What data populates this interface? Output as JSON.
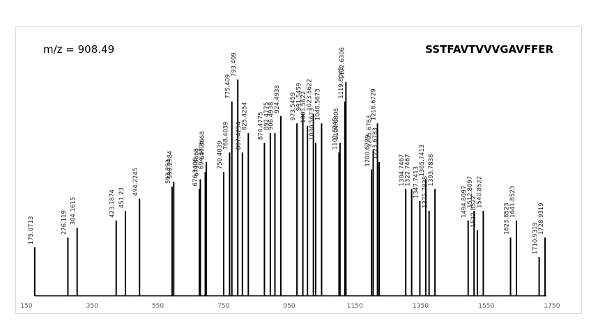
{
  "header": {
    "mz_label": "m/z = 908.49",
    "sequence": "SSTFAVTVVVGAVFFER"
  },
  "colors": {
    "peak": "#000000",
    "axis": "#000000",
    "leader": "#888888",
    "border": "#d9d9d9"
  },
  "chart_data": {
    "type": "bar",
    "title": "",
    "xlabel": "",
    "ylabel": "",
    "xlim": [
      150,
      1750
    ],
    "ylim": [
      0,
      100
    ],
    "xticks": [
      150,
      350,
      550,
      750,
      950,
      1150,
      1350,
      1550,
      1750
    ],
    "grid": false,
    "peaks": [
      {
        "mz": 175.0713,
        "label": "175.0713",
        "y": 20
      },
      {
        "mz": 276.119,
        "label": "276.119",
        "y": 24
      },
      {
        "mz": 304.1615,
        "label": "304.1615",
        "y": 28
      },
      {
        "mz": 423.1874,
        "label": "423.1874",
        "y": 31
      },
      {
        "mz": 451.23,
        "label": "451.23",
        "y": 35
      },
      {
        "mz": 494.2245,
        "label": "494.2245",
        "y": 40
      },
      {
        "mz": 593.293,
        "label": "593.293",
        "y": 45
      },
      {
        "mz": 598.2984,
        "label": "598.2984",
        "y": 47
      },
      {
        "mz": 676.3406,
        "label": "676.3406",
        "y": 44
      },
      {
        "mz": 679.3668,
        "label": "679.3668",
        "y": 48
      },
      {
        "mz": 694.3406,
        "label": "694.3406",
        "y": 51
      },
      {
        "mz": 697.3668,
        "label": "697.3668",
        "y": 55
      },
      {
        "mz": 750.4039,
        "label": "750.4039",
        "y": 51
      },
      {
        "mz": 768.4039,
        "label": "768.4039",
        "y": 59
      },
      {
        "mz": 775.409,
        "label": "775.409",
        "y": 80
      },
      {
        "mz": 793.409,
        "label": "793.409",
        "y": 89
      },
      {
        "mz": 807.4254,
        "label": "807.4254",
        "y": 59
      },
      {
        "mz": 825.4254,
        "label": "825.4254",
        "y": 67
      },
      {
        "mz": 874.4775,
        "label": "874.4775",
        "y": 63
      },
      {
        "mz": 892.4775,
        "label": "892.4775",
        "y": 67
      },
      {
        "mz": 906.4938,
        "label": "906.4938",
        "y": 67
      },
      {
        "mz": 924.4938,
        "label": "924.4938",
        "y": 74
      },
      {
        "mz": 973.5459,
        "label": "973.5459",
        "y": 71
      },
      {
        "mz": 991.5459,
        "label": "991.5459",
        "y": 75
      },
      {
        "mz": 1005.5622,
        "label": "1005.5622",
        "y": 70
      },
      {
        "mz": 1023.5622,
        "label": "1023.5622",
        "y": 75
      },
      {
        "mz": 1030.5673,
        "label": "1030.5673",
        "y": 63
      },
      {
        "mz": 1048.5673,
        "label": "1048.5673",
        "y": 71
      },
      {
        "mz": 1101.6045,
        "label": "1101.6045",
        "y": 59
      },
      {
        "mz": 1104.6306,
        "label": "1104.6306",
        "y": 63
      },
      {
        "mz": 1119.6045,
        "label": "1119.6045",
        "y": 80
      },
      {
        "mz": 1122.6306,
        "label": "1122.6306",
        "y": 88
      },
      {
        "mz": 1200.6729,
        "label": "1200.6729",
        "y": 52
      },
      {
        "mz": 1205.6783,
        "label": "1205.6783",
        "y": 60
      },
      {
        "mz": 1218.6729,
        "label": "1218.6729",
        "y": 71
      },
      {
        "mz": 1223.6783,
        "label": "1223.6783",
        "y": 55
      },
      {
        "mz": 1304.7467,
        "label": "1304.7467",
        "y": 44
      },
      {
        "mz": 1322.7467,
        "label": "1322.7467",
        "y": 44
      },
      {
        "mz": 1347.7413,
        "label": "1347.7413",
        "y": 39
      },
      {
        "mz": 1365.7413,
        "label": "1365.7413",
        "y": 48
      },
      {
        "mz": 1375.7838,
        "label": "1375.7838",
        "y": 35
      },
      {
        "mz": 1393.7838,
        "label": "1393.7838",
        "y": 44
      },
      {
        "mz": 1494.8097,
        "label": "1494.8097",
        "y": 31
      },
      {
        "mz": 1512.8097,
        "label": "1512.8097",
        "y": 35
      },
      {
        "mz": 1522.8522,
        "label": "1522.8522",
        "y": 27
      },
      {
        "mz": 1540.8522,
        "label": "1540.8522",
        "y": 35
      },
      {
        "mz": 1623.8523,
        "label": "1623.8523",
        "y": 24
      },
      {
        "mz": 1641.8523,
        "label": "1641.8523",
        "y": 31
      },
      {
        "mz": 1710.9319,
        "label": "1710.9319",
        "y": 16
      },
      {
        "mz": 1728.9319,
        "label": "1728.9319",
        "y": 24
      }
    ]
  }
}
